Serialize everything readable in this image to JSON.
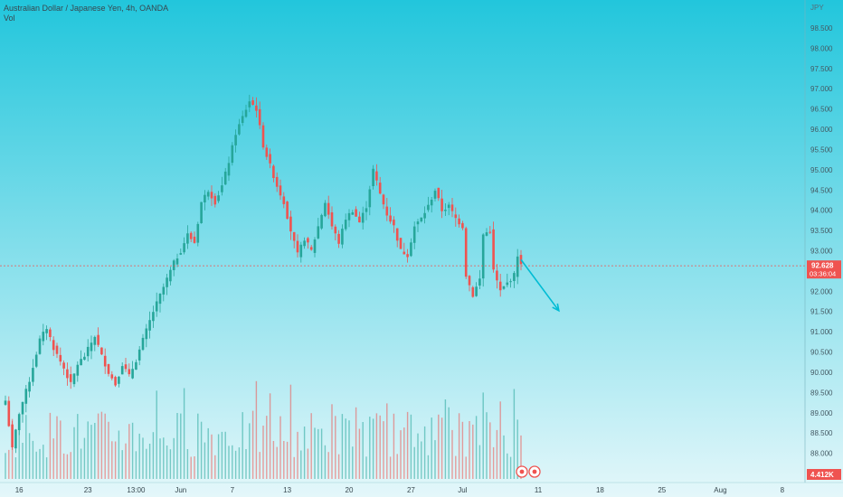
{
  "chart_data": {
    "type": "candlestick",
    "symbol_title": "Australian Dollar / Japanese Yen, 4h, OANDA",
    "volume_label": "Vol",
    "currency_label": "JPY",
    "price_axis": {
      "ylim": [
        87.5,
        98.7
      ],
      "ticks": [
        98.5,
        98.0,
        97.5,
        97.0,
        96.5,
        96.0,
        95.5,
        95.0,
        94.5,
        94.0,
        93.5,
        93.0,
        92.5,
        92.0,
        91.5,
        91.0,
        90.5,
        90.0,
        89.5,
        89.0,
        88.5,
        88.0,
        87.5
      ],
      "tick_labels": [
        "98.500",
        "98.000",
        "97.500",
        "97.000",
        "96.500",
        "96.000",
        "95.500",
        "95.000",
        "94.500",
        "94.000",
        "93.500",
        "93.000",
        "92.500",
        "92.000",
        "91.500",
        "91.000",
        "90.500",
        "90.000",
        "89.500",
        "89.000",
        "88.500",
        "88.000",
        "87.500"
      ]
    },
    "time_axis": {
      "labels": [
        {
          "text": "16",
          "index": 4
        },
        {
          "text": "23",
          "index": 24
        },
        {
          "text": "13:00",
          "index": 38
        },
        {
          "text": "Jun",
          "index": 51
        },
        {
          "text": "7",
          "index": 66
        },
        {
          "text": "13",
          "index": 82
        },
        {
          "text": "20",
          "index": 100
        },
        {
          "text": "27",
          "index": 118
        },
        {
          "text": "Jul",
          "index": 133
        },
        {
          "text": "11",
          "index": 155
        },
        {
          "text": "18",
          "index": 173
        },
        {
          "text": "25",
          "index": 191
        },
        {
          "text": "Aug",
          "index": 208
        },
        {
          "text": "8",
          "index": 226
        }
      ]
    },
    "current_price": {
      "value": 92.628,
      "label": "92.628",
      "countdown": "03:36:04"
    },
    "volume_badge": "4.412K",
    "projection_arrow": {
      "from_index": 150,
      "from_price": 92.78,
      "to_index": 161,
      "to_price": 91.52
    },
    "colors": {
      "up": "#26a69a",
      "down": "#ef5350",
      "price_badge": "#ef5350",
      "arrow": "#00bcd4",
      "bg_top": "#22c6dc",
      "bg_bottom": "#e4f7fa"
    },
    "grid": false,
    "candle_points": [
      {
        "i": 0,
        "p": 89.3
      },
      {
        "i": 2,
        "p": 88.1
      },
      {
        "i": 4,
        "p": 89.0
      },
      {
        "i": 7,
        "p": 89.8
      },
      {
        "i": 10,
        "p": 90.8
      },
      {
        "i": 12,
        "p": 91.1
      },
      {
        "i": 14,
        "p": 90.6
      },
      {
        "i": 17,
        "p": 90.1
      },
      {
        "i": 19,
        "p": 89.7
      },
      {
        "i": 21,
        "p": 90.2
      },
      {
        "i": 23,
        "p": 90.4
      },
      {
        "i": 26,
        "p": 90.9
      },
      {
        "i": 28,
        "p": 90.4
      },
      {
        "i": 30,
        "p": 90.0
      },
      {
        "i": 32,
        "p": 89.7
      },
      {
        "i": 34,
        "p": 90.2
      },
      {
        "i": 36,
        "p": 89.9
      },
      {
        "i": 38,
        "p": 90.3
      },
      {
        "i": 40,
        "p": 90.8
      },
      {
        "i": 43,
        "p": 91.5
      },
      {
        "i": 46,
        "p": 92.1
      },
      {
        "i": 49,
        "p": 92.7
      },
      {
        "i": 51,
        "p": 93.0
      },
      {
        "i": 53,
        "p": 93.4
      },
      {
        "i": 55,
        "p": 93.2
      },
      {
        "i": 57,
        "p": 94.2
      },
      {
        "i": 59,
        "p": 94.5
      },
      {
        "i": 61,
        "p": 94.2
      },
      {
        "i": 63,
        "p": 94.6
      },
      {
        "i": 65,
        "p": 95.2
      },
      {
        "i": 67,
        "p": 95.9
      },
      {
        "i": 69,
        "p": 96.3
      },
      {
        "i": 71,
        "p": 96.7
      },
      {
        "i": 73,
        "p": 96.5
      },
      {
        "i": 75,
        "p": 95.6
      },
      {
        "i": 77,
        "p": 95.1
      },
      {
        "i": 79,
        "p": 94.6
      },
      {
        "i": 81,
        "p": 94.2
      },
      {
        "i": 83,
        "p": 93.5
      },
      {
        "i": 85,
        "p": 92.9
      },
      {
        "i": 87,
        "p": 93.3
      },
      {
        "i": 89,
        "p": 93.0
      },
      {
        "i": 91,
        "p": 93.6
      },
      {
        "i": 93,
        "p": 94.2
      },
      {
        "i": 95,
        "p": 93.6
      },
      {
        "i": 97,
        "p": 93.2
      },
      {
        "i": 99,
        "p": 93.8
      },
      {
        "i": 101,
        "p": 94.0
      },
      {
        "i": 103,
        "p": 93.7
      },
      {
        "i": 105,
        "p": 94.1
      },
      {
        "i": 107,
        "p": 95.0
      },
      {
        "i": 109,
        "p": 94.4
      },
      {
        "i": 111,
        "p": 93.9
      },
      {
        "i": 113,
        "p": 93.6
      },
      {
        "i": 115,
        "p": 93.0
      },
      {
        "i": 117,
        "p": 92.9
      },
      {
        "i": 119,
        "p": 93.6
      },
      {
        "i": 121,
        "p": 93.8
      },
      {
        "i": 123,
        "p": 94.1
      },
      {
        "i": 125,
        "p": 94.5
      },
      {
        "i": 127,
        "p": 94.0
      },
      {
        "i": 129,
        "p": 94.1
      },
      {
        "i": 131,
        "p": 93.8
      },
      {
        "i": 133,
        "p": 93.6
      },
      {
        "i": 134,
        "p": 92.4
      },
      {
        "i": 136,
        "p": 91.9
      },
      {
        "i": 138,
        "p": 92.3
      },
      {
        "i": 139,
        "p": 93.4
      },
      {
        "i": 141,
        "p": 93.5
      },
      {
        "i": 142,
        "p": 92.5
      },
      {
        "i": 144,
        "p": 92.0
      },
      {
        "i": 146,
        "p": 92.2
      },
      {
        "i": 148,
        "p": 92.4
      },
      {
        "i": 149,
        "p": 92.9
      },
      {
        "i": 150,
        "p": 92.63
      }
    ]
  }
}
